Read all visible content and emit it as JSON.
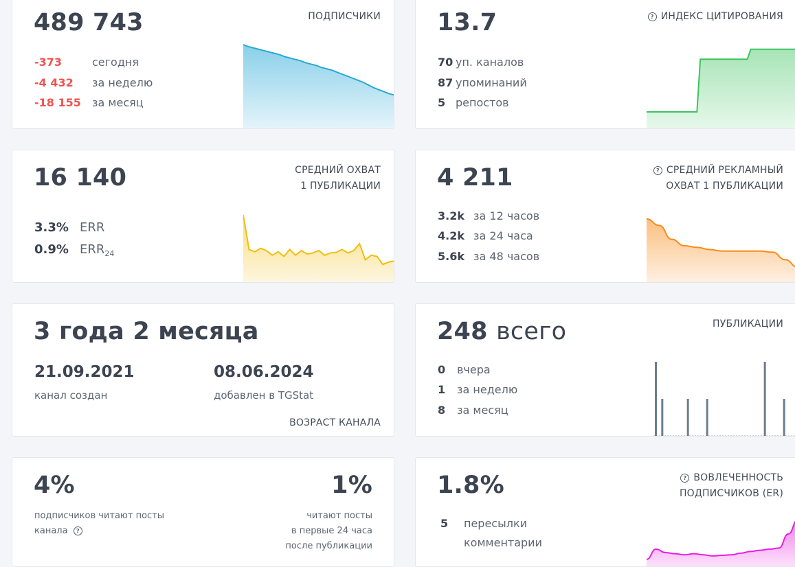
{
  "subscribers": {
    "value": "489 743",
    "label": "ПОДПИСЧИКИ",
    "stats": [
      {
        "value": "-373",
        "text": "сегодня"
      },
      {
        "value": "-4 432",
        "text": "за неделю"
      },
      {
        "value": "-18 155",
        "text": "за месяц"
      }
    ],
    "color": "#29a9d6"
  },
  "citation": {
    "value": "13.7",
    "label": "ИНДЕКС ЦИТИРОВАНИЯ",
    "icon": "help-circle-icon",
    "stats": [
      {
        "value": "70",
        "text": "уп. каналов"
      },
      {
        "value": "87",
        "text": "упоминаний"
      },
      {
        "value": "5",
        "text": "репостов"
      }
    ],
    "color": "#3cc45e"
  },
  "reach": {
    "value": "16 140",
    "label_line1": "СРЕДНИЙ ОХВАТ",
    "label_line2": "1 ПУБЛИКАЦИИ",
    "err": {
      "value": "3.3%",
      "text": "ERR"
    },
    "err24": {
      "value": "0.9%",
      "text": "ERR",
      "sub": "24"
    },
    "color": "#f2be0e"
  },
  "ad_reach": {
    "value": "4 211",
    "label_line1": "СРЕДНИЙ РЕКЛАМНЫЙ",
    "label_line2": "ОХВАТ 1 ПУБЛИКАЦИИ",
    "icon": "help-circle-icon",
    "stats": [
      {
        "value": "3.2k",
        "text": "за 12 часов"
      },
      {
        "value": "4.2k",
        "text": "за 24 часа"
      },
      {
        "value": "5.6k",
        "text": "за 48 часов"
      }
    ],
    "color": "#f98b1a"
  },
  "age": {
    "value": "3 года 2 месяца",
    "created_date": "21.09.2021",
    "created_text": "канал создан",
    "added_date": "08.06.2024",
    "added_text": "добавлен в TGStat",
    "label": "ВОЗРАСТ КАНАЛА"
  },
  "posts": {
    "value": "248",
    "value_suffix": "всего",
    "label": "ПУБЛИКАЦИИ",
    "stats": [
      {
        "value": "0",
        "text": "вчера"
      },
      {
        "value": "1",
        "text": "за неделю"
      },
      {
        "value": "8",
        "text": "за месяц"
      }
    ],
    "color": "#6e7c8f"
  },
  "readers": {
    "left_value": "4%",
    "left_text1": "подписчиков читают посты",
    "left_text2": "канала",
    "right_value": "1%",
    "right_text1": "читают посты",
    "right_text2": "в первые 24 часа",
    "right_text3": "после публикации"
  },
  "engagement": {
    "value": "1.8%",
    "label_line1": "ВОВЛЕЧЕННОСТЬ",
    "label_line2": "ПОДПИСЧИКОВ (ER)",
    "icon": "help-circle-icon",
    "stats": [
      {
        "value": "5",
        "text": "пересылки"
      },
      {
        "value": "",
        "text": "комментарии"
      }
    ],
    "color": "#e81ee0"
  },
  "chart_data": [
    {
      "type": "area",
      "series": [
        {
          "values": [
            100,
            97,
            95,
            93,
            91,
            89,
            87,
            85,
            82,
            80,
            78,
            76,
            73,
            71,
            69,
            66,
            64,
            62,
            59,
            56,
            53,
            50,
            47,
            44,
            40,
            36,
            33,
            30,
            27,
            25
          ]
        }
      ]
    },
    {
      "type": "line",
      "series": [
        {
          "values": [
            0,
            0,
            0,
            0,
            0,
            0,
            0,
            0,
            0,
            0,
            0,
            0,
            0,
            0,
            0,
            0,
            80,
            80,
            80,
            80,
            80,
            80,
            80,
            80,
            80,
            80,
            80,
            80,
            80,
            80,
            80,
            95,
            95,
            95,
            95,
            95,
            95,
            95,
            95,
            95,
            95,
            95,
            95,
            95,
            95,
            95
          ]
        }
      ]
    },
    {
      "type": "area",
      "series": [
        {
          "values": [
            100,
            40,
            36,
            42,
            38,
            30,
            36,
            28,
            40,
            30,
            38,
            32,
            34,
            38,
            30,
            34,
            35,
            40,
            34,
            38,
            50,
            22,
            30,
            28,
            14,
            18,
            20
          ]
        }
      ]
    },
    {
      "type": "area",
      "series": [
        {
          "values": [
            100,
            88,
            62,
            50,
            47,
            43,
            40,
            40,
            40,
            40,
            38,
            24,
            10
          ]
        }
      ]
    },
    {
      "type": "bar",
      "series": [
        {
          "values": [
            1,
            0.5,
            0,
            0,
            0,
            0.5,
            0,
            0,
            0.5,
            0,
            0,
            0,
            0,
            0,
            0,
            0,
            0,
            1,
            0,
            0,
            0.5,
            0
          ]
        }
      ]
    },
    {
      "type": "area",
      "series": [
        {
          "values": [
            10,
            28,
            22,
            20,
            18,
            20,
            18,
            16,
            17,
            18,
            21,
            24,
            26,
            28,
            30,
            55,
            80
          ]
        }
      ]
    }
  ]
}
